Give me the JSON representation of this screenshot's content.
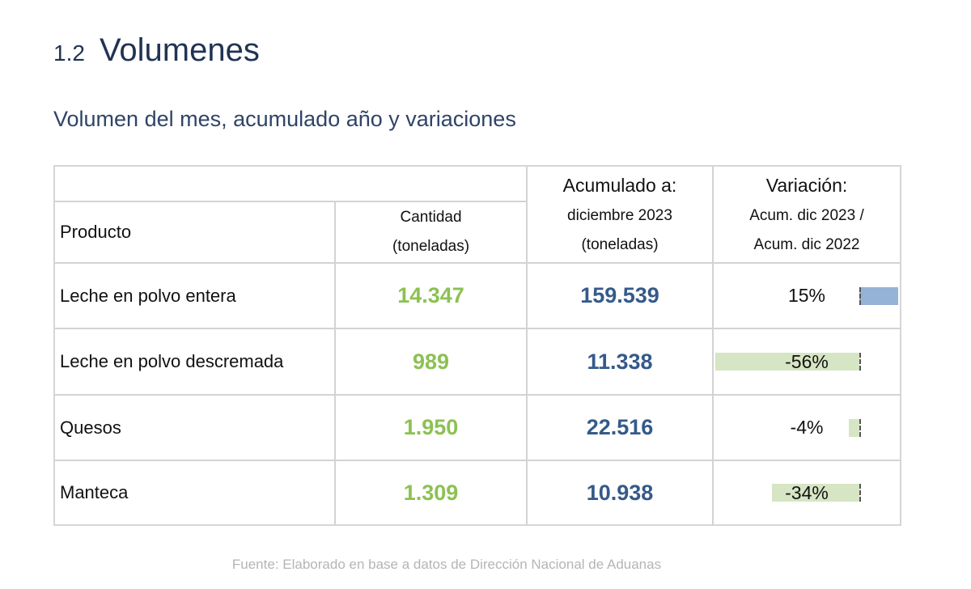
{
  "section": {
    "number": "1.2",
    "title": "Volumenes"
  },
  "subtitle": "Volumen del mes, acumulado año y variaciones",
  "table": {
    "header": {
      "product": "Producto",
      "quantity_line1": "Cantidad",
      "quantity_line2": "(toneladas)",
      "accum_line1": "Acumulado a:",
      "accum_line2": "diciembre 2023",
      "accum_line3": "(toneladas)",
      "variation_line1": "Variación:",
      "variation_line2": "Acum. dic 2023 /",
      "variation_line3": "Acum. dic 2022"
    },
    "rows": [
      {
        "product": "Leche en polvo entera",
        "quantity": "14.347",
        "accumulated": "159.539",
        "variation": "15%",
        "variation_value": 15
      },
      {
        "product": "Leche en polvo descremada",
        "quantity": "989",
        "accumulated": "11.338",
        "variation": "-56%",
        "variation_value": -56
      },
      {
        "product": "Quesos",
        "quantity": "1.950",
        "accumulated": "22.516",
        "variation": "-4%",
        "variation_value": -4
      },
      {
        "product": "Manteca",
        "quantity": "1.309",
        "accumulated": "10.938",
        "variation": "-34%",
        "variation_value": -34
      }
    ]
  },
  "colors": {
    "quantity": "#8cc152",
    "accumulated": "#355a8a",
    "positive_bar": "#95b3d7",
    "negative_bar": "#d6e5c4"
  },
  "source": "Fuente: Elaborado en base a datos de Dirección Nacional de Aduanas"
}
